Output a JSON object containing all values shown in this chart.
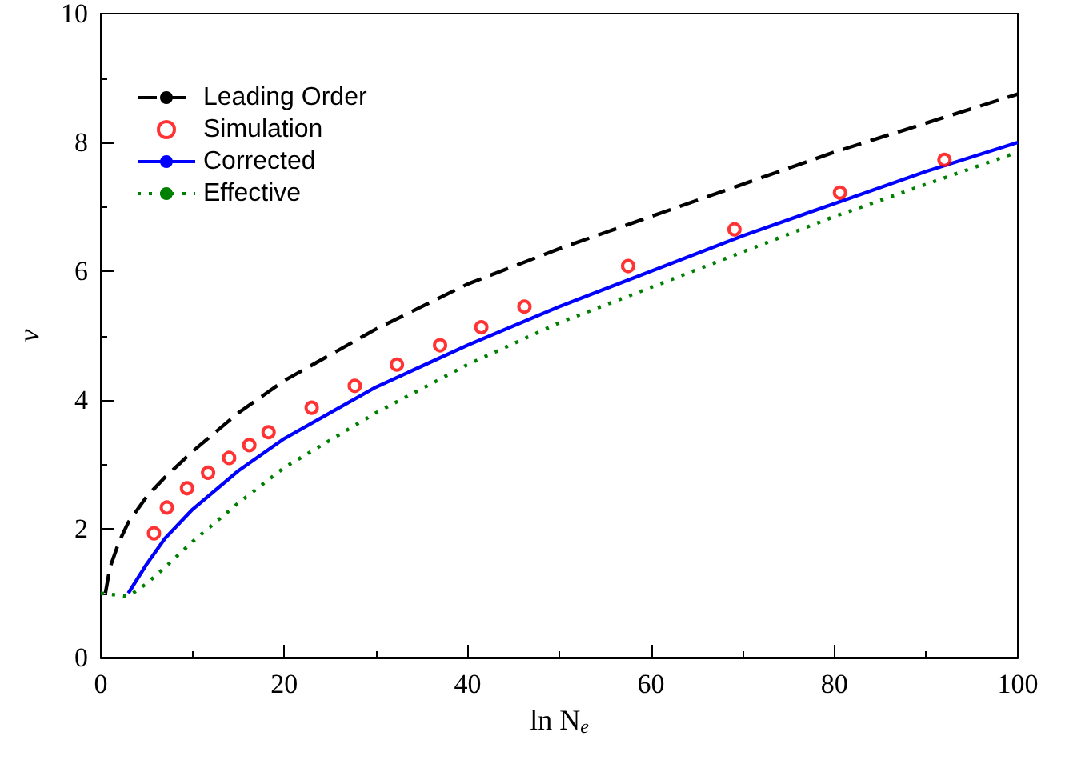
{
  "chart_data": {
    "type": "line",
    "xlabel": "ln N$_{e}$",
    "ylabel": "v",
    "xlim": [
      0,
      100
    ],
    "ylim": [
      0,
      10
    ],
    "xticks": [
      0,
      20,
      40,
      60,
      80,
      100
    ],
    "yticks": [
      0,
      2,
      4,
      6,
      8,
      10
    ],
    "grid": false,
    "legend": "top left",
    "series": [
      {
        "name": "Leading Order",
        "color": "#000000",
        "line_style": "dashed",
        "marker": "none",
        "x": [
          0.5,
          1,
          2,
          3,
          5,
          7,
          10,
          15,
          20,
          30,
          40,
          50,
          60,
          70,
          80,
          90,
          100
        ],
        "values": [
          1.0,
          1.4,
          1.8,
          2.1,
          2.5,
          2.8,
          3.2,
          3.8,
          4.3,
          5.1,
          5.8,
          6.35,
          6.85,
          7.35,
          7.85,
          8.3,
          8.75
        ]
      },
      {
        "name": "Simulation",
        "type": "scatter",
        "color": "#ff0000",
        "marker": "circle",
        "x": [
          5.8,
          7.2,
          9.4,
          11.7,
          14.0,
          16.2,
          18.3,
          23.0,
          27.7,
          32.3,
          37.0,
          41.5,
          46.2,
          57.5,
          69.1,
          80.6,
          92.0
        ],
        "values": [
          1.93,
          2.33,
          2.63,
          2.87,
          3.1,
          3.3,
          3.5,
          3.88,
          4.22,
          4.55,
          4.85,
          5.13,
          5.45,
          6.08,
          6.65,
          7.22,
          7.73
        ]
      },
      {
        "name": "Corrected",
        "color": "#0000ff",
        "line_style": "solid",
        "marker": "none",
        "x": [
          3,
          5,
          7,
          10,
          15,
          20,
          30,
          40,
          50,
          60,
          70,
          80,
          90,
          100
        ],
        "values": [
          1.0,
          1.45,
          1.85,
          2.3,
          2.9,
          3.4,
          4.2,
          4.85,
          5.45,
          6.0,
          6.55,
          7.05,
          7.55,
          8.0
        ]
      },
      {
        "name": "Effective",
        "color": "#008000",
        "line_style": "dotted",
        "marker": "none",
        "x": [
          0,
          3,
          5,
          7,
          10,
          15,
          20,
          30,
          40,
          50,
          60,
          70,
          80,
          90,
          100
        ],
        "values": [
          1.0,
          0.95,
          1.15,
          1.4,
          1.8,
          2.4,
          2.95,
          3.8,
          4.55,
          5.2,
          5.75,
          6.3,
          6.85,
          7.35,
          7.85
        ]
      }
    ]
  }
}
